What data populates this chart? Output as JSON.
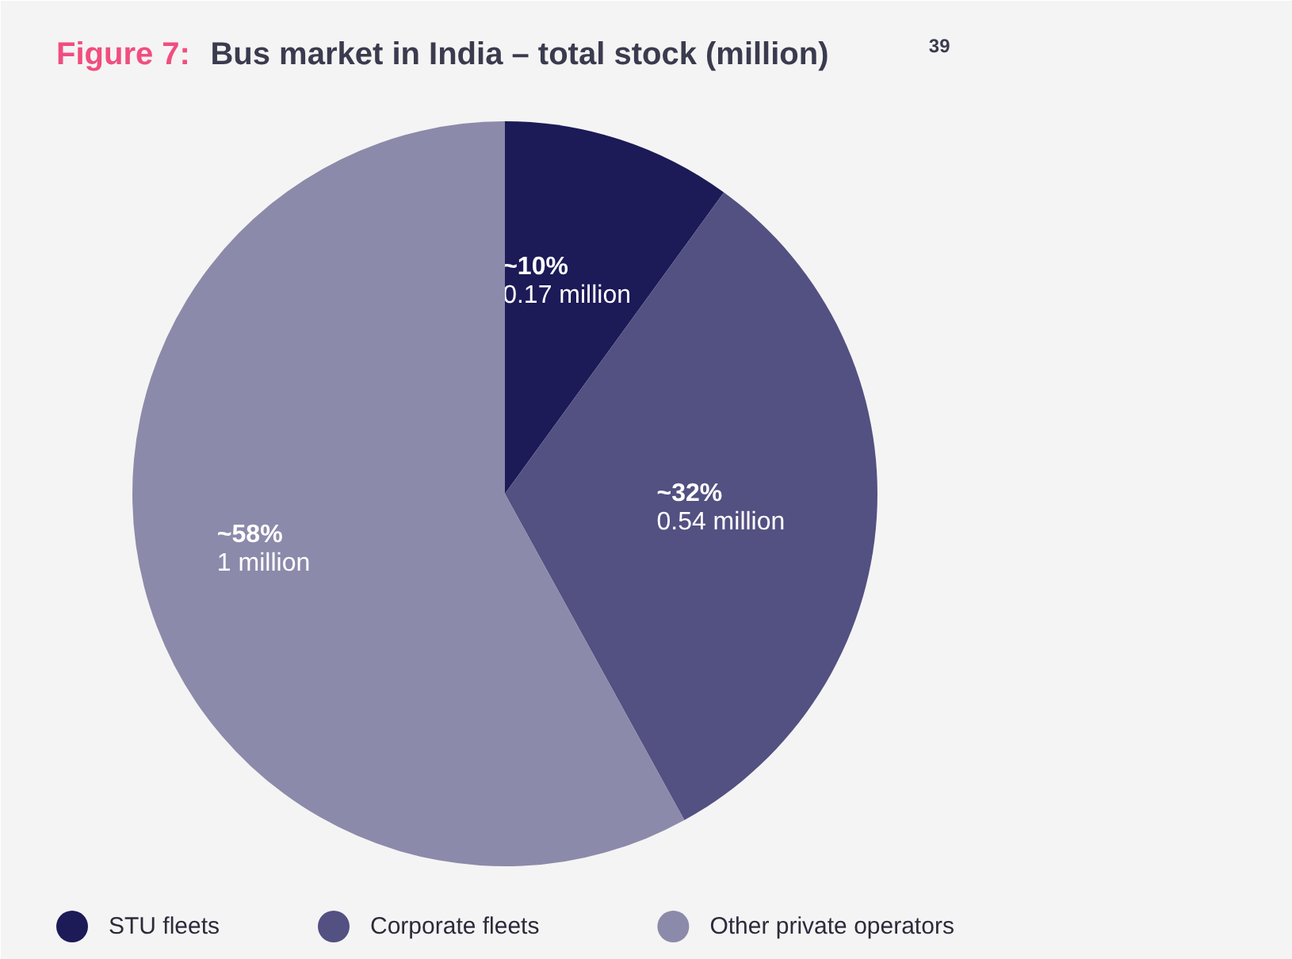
{
  "chart_data": {
    "type": "pie",
    "title": "Figure 7: Bus market in India – total stock (million)$^{39}$",
    "categories": [
      "STU fleets",
      "Corporate fleets",
      "Other private operators"
    ],
    "values": [
      10,
      32,
      58
    ],
    "value_labels": [
      "~10%\n0.17 million",
      "~32%\n0.54 million",
      "~58%\n1 million"
    ],
    "colors": [
      "#1c1a57",
      "#535082",
      "#8c8aaa"
    ],
    "legend": "bottom"
  }
}
